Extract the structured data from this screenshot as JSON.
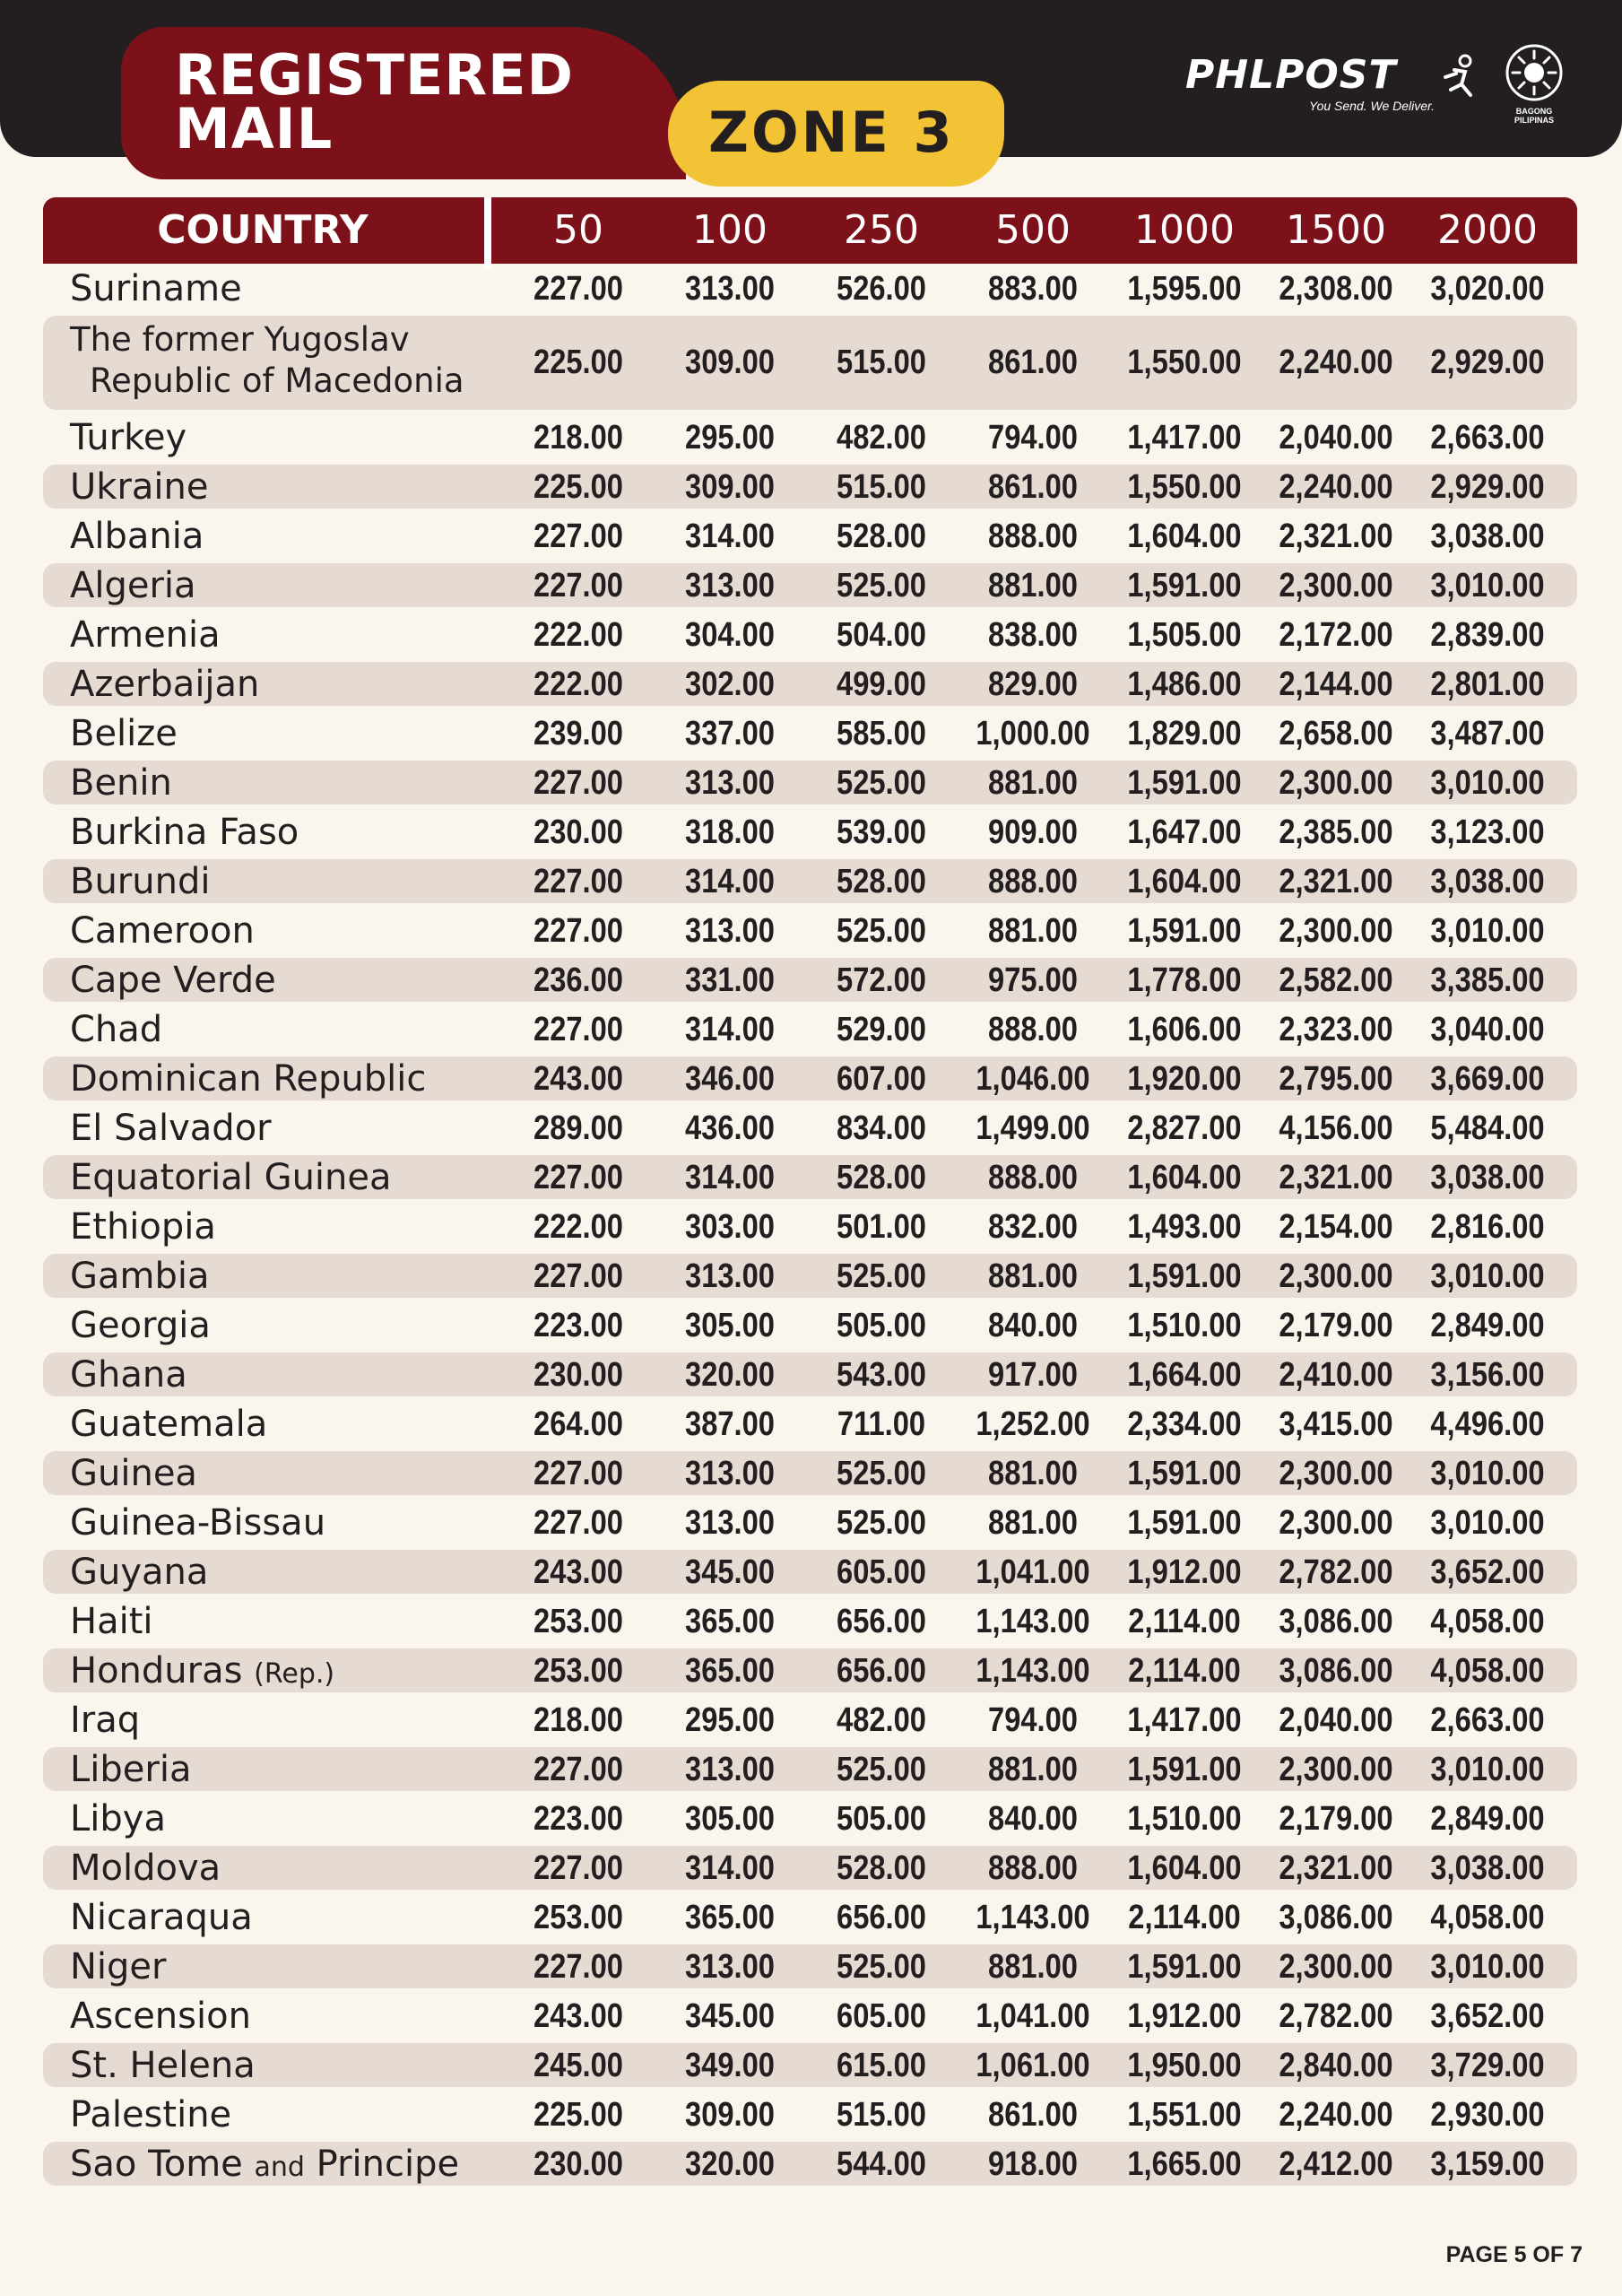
{
  "header": {
    "title_line1": "REGISTERED",
    "title_line2": "MAIL",
    "zone": "ZONE 3",
    "brand": "PHLPOST",
    "tagline": "You Send. We Deliver.",
    "seal_label": "BAGONG PILIPINAS"
  },
  "colors": {
    "maroon": "#7c1119",
    "yellow": "#f2c335",
    "dark": "#231f20",
    "shade": "#e6dbd3",
    "paper": "#faf6ee"
  },
  "table": {
    "country_header": "COUNTRY",
    "weights": [
      "50",
      "100",
      "250",
      "500",
      "1000",
      "1500",
      "2000"
    ],
    "rows": [
      {
        "country": "Suriname",
        "rates": [
          "227.00",
          "313.00",
          "526.00",
          "883.00",
          "1,595.00",
          "2,308.00",
          "3,020.00"
        ]
      },
      {
        "country": "The former Yugoslav",
        "country_line2": "Republic of Macedonia",
        "rates": [
          "225.00",
          "309.00",
          "515.00",
          "861.00",
          "1,550.00",
          "2,240.00",
          "2,929.00"
        ]
      },
      {
        "country": "Turkey",
        "rates": [
          "218.00",
          "295.00",
          "482.00",
          "794.00",
          "1,417.00",
          "2,040.00",
          "2,663.00"
        ]
      },
      {
        "country": "Ukraine",
        "rates": [
          "225.00",
          "309.00",
          "515.00",
          "861.00",
          "1,550.00",
          "2,240.00",
          "2,929.00"
        ]
      },
      {
        "country": "Albania",
        "rates": [
          "227.00",
          "314.00",
          "528.00",
          "888.00",
          "1,604.00",
          "2,321.00",
          "3,038.00"
        ]
      },
      {
        "country": "Algeria",
        "rates": [
          "227.00",
          "313.00",
          "525.00",
          "881.00",
          "1,591.00",
          "2,300.00",
          "3,010.00"
        ]
      },
      {
        "country": "Armenia",
        "rates": [
          "222.00",
          "304.00",
          "504.00",
          "838.00",
          "1,505.00",
          "2,172.00",
          "2,839.00"
        ]
      },
      {
        "country": "Azerbaijan",
        "rates": [
          "222.00",
          "302.00",
          "499.00",
          "829.00",
          "1,486.00",
          "2,144.00",
          "2,801.00"
        ]
      },
      {
        "country": "Belize",
        "rates": [
          "239.00",
          "337.00",
          "585.00",
          "1,000.00",
          "1,829.00",
          "2,658.00",
          "3,487.00"
        ]
      },
      {
        "country": "Benin",
        "rates": [
          "227.00",
          "313.00",
          "525.00",
          "881.00",
          "1,591.00",
          "2,300.00",
          "3,010.00"
        ]
      },
      {
        "country": "Burkina Faso",
        "rates": [
          "230.00",
          "318.00",
          "539.00",
          "909.00",
          "1,647.00",
          "2,385.00",
          "3,123.00"
        ]
      },
      {
        "country": "Burundi",
        "rates": [
          "227.00",
          "314.00",
          "528.00",
          "888.00",
          "1,604.00",
          "2,321.00",
          "3,038.00"
        ]
      },
      {
        "country": "Cameroon",
        "rates": [
          "227.00",
          "313.00",
          "525.00",
          "881.00",
          "1,591.00",
          "2,300.00",
          "3,010.00"
        ]
      },
      {
        "country": "Cape Verde",
        "rates": [
          "236.00",
          "331.00",
          "572.00",
          "975.00",
          "1,778.00",
          "2,582.00",
          "3,385.00"
        ]
      },
      {
        "country": "Chad",
        "rates": [
          "227.00",
          "314.00",
          "529.00",
          "888.00",
          "1,606.00",
          "2,323.00",
          "3,040.00"
        ]
      },
      {
        "country": "Dominican Republic",
        "rates": [
          "243.00",
          "346.00",
          "607.00",
          "1,046.00",
          "1,920.00",
          "2,795.00",
          "3,669.00"
        ]
      },
      {
        "country": "El Salvador",
        "rates": [
          "289.00",
          "436.00",
          "834.00",
          "1,499.00",
          "2,827.00",
          "4,156.00",
          "5,484.00"
        ]
      },
      {
        "country": "Equatorial Guinea",
        "rates": [
          "227.00",
          "314.00",
          "528.00",
          "888.00",
          "1,604.00",
          "2,321.00",
          "3,038.00"
        ]
      },
      {
        "country": "Ethiopia",
        "rates": [
          "222.00",
          "303.00",
          "501.00",
          "832.00",
          "1,493.00",
          "2,154.00",
          "2,816.00"
        ]
      },
      {
        "country": "Gambia",
        "rates": [
          "227.00",
          "313.00",
          "525.00",
          "881.00",
          "1,591.00",
          "2,300.00",
          "3,010.00"
        ]
      },
      {
        "country": "Georgia",
        "rates": [
          "223.00",
          "305.00",
          "505.00",
          "840.00",
          "1,510.00",
          "2,179.00",
          "2,849.00"
        ]
      },
      {
        "country": "Ghana",
        "rates": [
          "230.00",
          "320.00",
          "543.00",
          "917.00",
          "1,664.00",
          "2,410.00",
          "3,156.00"
        ]
      },
      {
        "country": "Guatemala",
        "rates": [
          "264.00",
          "387.00",
          "711.00",
          "1,252.00",
          "2,334.00",
          "3,415.00",
          "4,496.00"
        ]
      },
      {
        "country": "Guinea",
        "rates": [
          "227.00",
          "313.00",
          "525.00",
          "881.00",
          "1,591.00",
          "2,300.00",
          "3,010.00"
        ]
      },
      {
        "country": "Guinea-Bissau",
        "rates": [
          "227.00",
          "313.00",
          "525.00",
          "881.00",
          "1,591.00",
          "2,300.00",
          "3,010.00"
        ]
      },
      {
        "country": "Guyana",
        "rates": [
          "243.00",
          "345.00",
          "605.00",
          "1,041.00",
          "1,912.00",
          "2,782.00",
          "3,652.00"
        ]
      },
      {
        "country": "Haiti",
        "rates": [
          "253.00",
          "365.00",
          "656.00",
          "1,143.00",
          "2,114.00",
          "3,086.00",
          "4,058.00"
        ]
      },
      {
        "country": "Honduras",
        "country_suffix": "(Rep.)",
        "rates": [
          "253.00",
          "365.00",
          "656.00",
          "1,143.00",
          "2,114.00",
          "3,086.00",
          "4,058.00"
        ]
      },
      {
        "country": "Iraq",
        "rates": [
          "218.00",
          "295.00",
          "482.00",
          "794.00",
          "1,417.00",
          "2,040.00",
          "2,663.00"
        ]
      },
      {
        "country": "Liberia",
        "rates": [
          "227.00",
          "313.00",
          "525.00",
          "881.00",
          "1,591.00",
          "2,300.00",
          "3,010.00"
        ]
      },
      {
        "country": "Libya",
        "rates": [
          "223.00",
          "305.00",
          "505.00",
          "840.00",
          "1,510.00",
          "2,179.00",
          "2,849.00"
        ]
      },
      {
        "country": "Moldova",
        "rates": [
          "227.00",
          "314.00",
          "528.00",
          "888.00",
          "1,604.00",
          "2,321.00",
          "3,038.00"
        ]
      },
      {
        "country": "Nicaraqua",
        "rates": [
          "253.00",
          "365.00",
          "656.00",
          "1,143.00",
          "2,114.00",
          "3,086.00",
          "4,058.00"
        ]
      },
      {
        "country": "Niger",
        "rates": [
          "227.00",
          "313.00",
          "525.00",
          "881.00",
          "1,591.00",
          "2,300.00",
          "3,010.00"
        ]
      },
      {
        "country": "Ascension",
        "rates": [
          "243.00",
          "345.00",
          "605.00",
          "1,041.00",
          "1,912.00",
          "2,782.00",
          "3,652.00"
        ]
      },
      {
        "country": "St. Helena",
        "rates": [
          "245.00",
          "349.00",
          "615.00",
          "1,061.00",
          "1,950.00",
          "2,840.00",
          "3,729.00"
        ]
      },
      {
        "country": "Palestine",
        "rates": [
          "225.00",
          "309.00",
          "515.00",
          "861.00",
          "1,551.00",
          "2,240.00",
          "2,930.00"
        ]
      },
      {
        "country": "Sao Tome",
        "country_mid": "and",
        "country_end": "Principe",
        "rates": [
          "230.00",
          "320.00",
          "544.00",
          "918.00",
          "1,665.00",
          "2,412.00",
          "3,159.00"
        ]
      }
    ]
  },
  "footer": {
    "page": "PAGE 5 OF 7"
  }
}
